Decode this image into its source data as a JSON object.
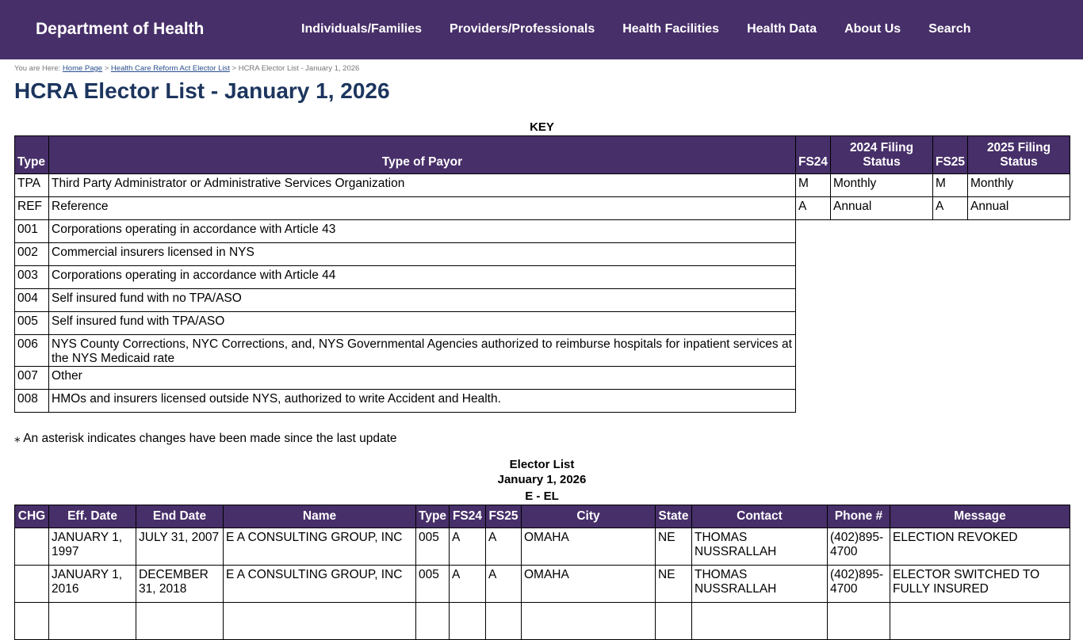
{
  "header": {
    "brand": "Department of Health",
    "nav": [
      "Individuals/Families",
      "Providers/Professionals",
      "Health Facilities",
      "Health Data",
      "About Us",
      "Search"
    ]
  },
  "breadcrumb": {
    "prefix": "You are Here:",
    "home": "Home Page",
    "parent": "Health Care Reform Act Elector List",
    "current": "HCRA Elector List - January 1, 2026"
  },
  "title": "HCRA Elector List - January 1, 2026",
  "key": {
    "caption": "KEY",
    "headers": [
      "Type",
      "Type of Payor",
      "FS24",
      "2024 Filing Status",
      "FS25",
      "2025 Filing Status"
    ],
    "rows": [
      [
        "TPA",
        "Third Party Administrator or Administrative Services Organization",
        "M",
        "Monthly",
        "M",
        "Monthly"
      ],
      [
        "REF",
        "Reference",
        "A",
        "Annual",
        "A",
        "Annual"
      ],
      [
        "001",
        "Corporations operating in accordance with Article 43"
      ],
      [
        "002",
        "Commercial insurers licensed in NYS"
      ],
      [
        "003",
        "Corporations operating in accordance with Article 44"
      ],
      [
        "004",
        "Self insured fund with no TPA/ASO"
      ],
      [
        "005",
        "Self insured fund with TPA/ASO"
      ],
      [
        "006",
        "NYS County Corrections, NYC Corrections, and, NYS Governmental Agencies authorized to reimburse hospitals for inpatient services at the NYS Medicaid rate"
      ],
      [
        "007",
        "Other"
      ],
      [
        "008",
        "HMOs and insurers licensed outside NYS, authorized to write Accident and Health."
      ]
    ]
  },
  "note": "⁎ An asterisk indicates changes have been made since the last update",
  "elector": {
    "caption1": "Elector List",
    "caption2": "January 1, 2026",
    "range": "E - EL",
    "headers": [
      "CHG",
      "Eff. Date",
      "End Date",
      "Name",
      "Type",
      "FS24",
      "FS25",
      "City",
      "State",
      "Contact",
      "Phone #",
      "Message"
    ],
    "rows": [
      [
        "",
        "JANUARY 1, 1997",
        "JULY 31, 2007",
        "E A CONSULTING GROUP, INC",
        "005",
        "A",
        "A",
        "OMAHA",
        "NE",
        "THOMAS NUSSRALLAH",
        "(402)895-4700",
        "ELECTION REVOKED"
      ],
      [
        "",
        "JANUARY 1, 2016",
        "DECEMBER 31, 2018",
        "E A CONSULTING GROUP, INC",
        "005",
        "A",
        "A",
        "OMAHA",
        "NE",
        "THOMAS NUSSRALLAH",
        "(402)895-4700",
        "ELECTOR SWITCHED TO FULLY INSURED"
      ],
      [
        "",
        "",
        "",
        "",
        "",
        "",
        "",
        "",
        "",
        "",
        "",
        ""
      ]
    ]
  },
  "colors": {
    "header_bg": "#472f69",
    "title": "#1c355e"
  }
}
